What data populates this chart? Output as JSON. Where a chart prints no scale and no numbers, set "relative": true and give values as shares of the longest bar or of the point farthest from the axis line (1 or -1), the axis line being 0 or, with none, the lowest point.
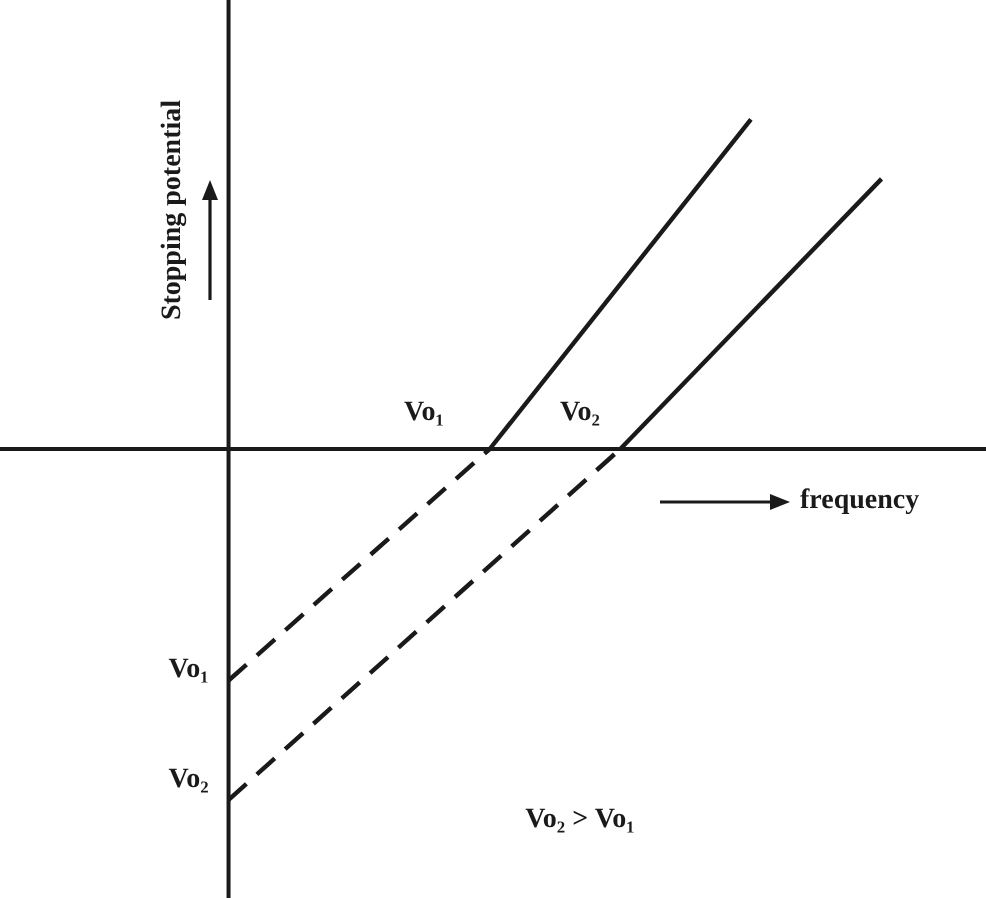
{
  "chart_data": {
    "type": "line",
    "relative": true,
    "xlabel": "frequency",
    "ylabel": "Stopping potential",
    "categories": [
      null,
      null,
      null,
      null,
      null,
      null
    ],
    "tick_labels": false,
    "legend": false,
    "marker": "none",
    "series": [
      {
        "values": [
          -0.66,
          null,
          0,
          null,
          null,
          null
        ],
        "color": "#1a1a1a",
        "line_style": "dashed"
      },
      {
        "values": [
          null,
          null,
          0,
          null,
          0.94,
          null
        ],
        "color": "#1a1a1a",
        "line_style": "solid"
      },
      {
        "values": [
          -1,
          null,
          null,
          0,
          null,
          null
        ],
        "color": "#1a1a1a",
        "line_style": "dashed"
      },
      {
        "values": [
          null,
          null,
          null,
          0,
          null,
          0.77
        ],
        "color": "#1a1a1a",
        "line_style": "solid"
      }
    ],
    "annotations": [
      "Vo₁",
      "Vo₂",
      "Vo₁",
      "Vo₂",
      "Vo₂ > Vo₁"
    ]
  }
}
